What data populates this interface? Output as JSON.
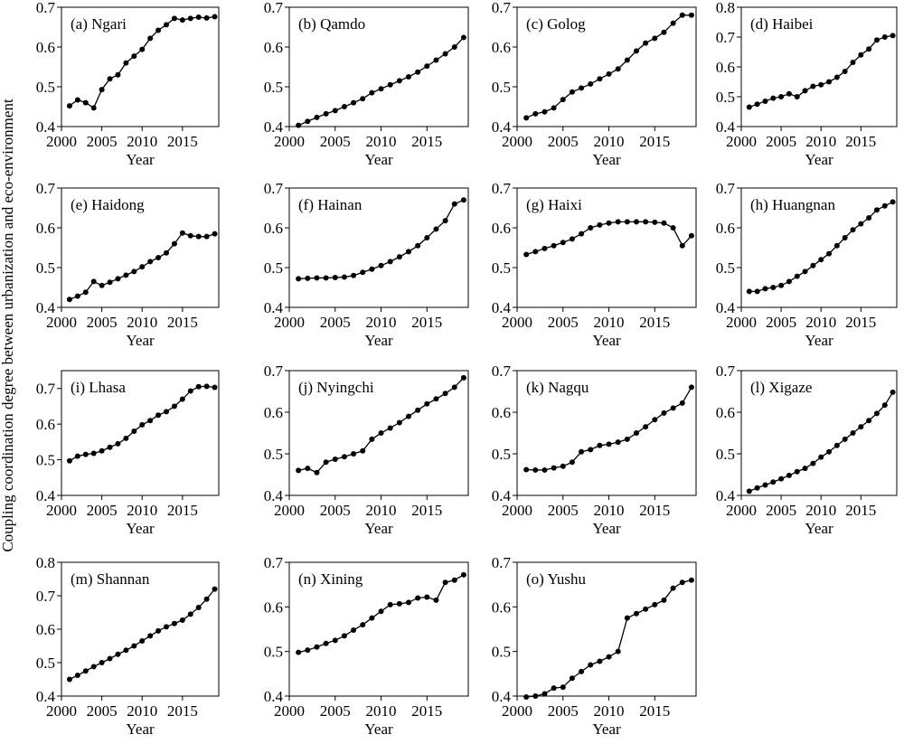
{
  "ylabel": "Coupling coordination degree between urbanization and eco-environment",
  "chart_data": [
    {
      "type": "line",
      "title": "(a) Ngari",
      "xlabel": "Year",
      "x": [
        2001,
        2002,
        2003,
        2004,
        2005,
        2006,
        2007,
        2008,
        2009,
        2010,
        2011,
        2012,
        2013,
        2014,
        2015,
        2016,
        2017,
        2018,
        2019
      ],
      "values": [
        0.452,
        0.467,
        0.46,
        0.447,
        0.493,
        0.52,
        0.53,
        0.56,
        0.577,
        0.594,
        0.622,
        0.642,
        0.656,
        0.672,
        0.668,
        0.672,
        0.675,
        0.673,
        0.676
      ],
      "xlim": [
        2000,
        2019.5
      ],
      "ylim": [
        0.4,
        0.7
      ],
      "xticks": [
        2000,
        2005,
        2010,
        2015
      ],
      "yticks": [
        0.4,
        0.5,
        0.6,
        0.7
      ],
      "color": "#000000"
    },
    {
      "type": "line",
      "title": "(b) Qamdo",
      "xlabel": "Year",
      "x": [
        2001,
        2002,
        2003,
        2004,
        2005,
        2006,
        2007,
        2008,
        2009,
        2010,
        2011,
        2012,
        2013,
        2014,
        2015,
        2016,
        2017,
        2018,
        2019
      ],
      "values": [
        0.403,
        0.413,
        0.423,
        0.432,
        0.44,
        0.45,
        0.46,
        0.47,
        0.485,
        0.495,
        0.505,
        0.515,
        0.525,
        0.537,
        0.552,
        0.567,
        0.583,
        0.6,
        0.624
      ],
      "xlim": [
        2000,
        2019.5
      ],
      "ylim": [
        0.4,
        0.7
      ],
      "xticks": [
        2000,
        2005,
        2010,
        2015
      ],
      "yticks": [
        0.4,
        0.5,
        0.6,
        0.7
      ],
      "color": "#000000"
    },
    {
      "type": "line",
      "title": "(c) Golog",
      "xlabel": "Year",
      "x": [
        2001,
        2002,
        2003,
        2004,
        2005,
        2006,
        2007,
        2008,
        2009,
        2010,
        2011,
        2012,
        2013,
        2014,
        2015,
        2016,
        2017,
        2018,
        2019
      ],
      "values": [
        0.422,
        0.432,
        0.437,
        0.447,
        0.468,
        0.487,
        0.497,
        0.507,
        0.52,
        0.532,
        0.545,
        0.567,
        0.59,
        0.61,
        0.622,
        0.637,
        0.66,
        0.68,
        0.68
      ],
      "xlim": [
        2000,
        2019.5
      ],
      "ylim": [
        0.4,
        0.7
      ],
      "xticks": [
        2000,
        2005,
        2010,
        2015
      ],
      "yticks": [
        0.4,
        0.5,
        0.6,
        0.7
      ],
      "color": "#000000"
    },
    {
      "type": "line",
      "title": "(d) Haibei",
      "xlabel": "Year",
      "x": [
        2001,
        2002,
        2003,
        2004,
        2005,
        2006,
        2007,
        2008,
        2009,
        2010,
        2011,
        2012,
        2013,
        2014,
        2015,
        2016,
        2017,
        2018,
        2019
      ],
      "values": [
        0.465,
        0.475,
        0.485,
        0.495,
        0.5,
        0.51,
        0.5,
        0.52,
        0.535,
        0.54,
        0.55,
        0.565,
        0.585,
        0.615,
        0.64,
        0.66,
        0.69,
        0.7,
        0.705
      ],
      "xlim": [
        2000,
        2019.5
      ],
      "ylim": [
        0.4,
        0.8
      ],
      "xticks": [
        2000,
        2005,
        2010,
        2015
      ],
      "yticks": [
        0.4,
        0.5,
        0.6,
        0.7,
        0.8
      ],
      "color": "#000000"
    },
    {
      "type": "line",
      "title": "(e) Haidong",
      "xlabel": "Year",
      "x": [
        2001,
        2002,
        2003,
        2004,
        2005,
        2006,
        2007,
        2008,
        2009,
        2010,
        2011,
        2012,
        2013,
        2014,
        2015,
        2016,
        2017,
        2018,
        2019
      ],
      "values": [
        0.42,
        0.428,
        0.438,
        0.465,
        0.455,
        0.463,
        0.472,
        0.481,
        0.49,
        0.502,
        0.515,
        0.525,
        0.537,
        0.56,
        0.587,
        0.58,
        0.578,
        0.578,
        0.585
      ],
      "xlim": [
        2000,
        2019.5
      ],
      "ylim": [
        0.4,
        0.7
      ],
      "xticks": [
        2000,
        2005,
        2010,
        2015
      ],
      "yticks": [
        0.4,
        0.5,
        0.6,
        0.7
      ],
      "color": "#000000"
    },
    {
      "type": "line",
      "title": "(f) Hainan",
      "xlabel": "Year",
      "x": [
        2001,
        2002,
        2003,
        2004,
        2005,
        2006,
        2007,
        2008,
        2009,
        2010,
        2011,
        2012,
        2013,
        2014,
        2015,
        2016,
        2017,
        2018,
        2019
      ],
      "values": [
        0.472,
        0.473,
        0.474,
        0.474,
        0.475,
        0.476,
        0.48,
        0.488,
        0.496,
        0.505,
        0.515,
        0.527,
        0.54,
        0.555,
        0.575,
        0.597,
        0.618,
        0.66,
        0.67
      ],
      "xlim": [
        2000,
        2019.5
      ],
      "ylim": [
        0.4,
        0.7
      ],
      "xticks": [
        2000,
        2005,
        2010,
        2015
      ],
      "yticks": [
        0.4,
        0.5,
        0.6,
        0.7
      ],
      "color": "#000000"
    },
    {
      "type": "line",
      "title": "(g) Haixi",
      "xlabel": "Year",
      "x": [
        2001,
        2002,
        2003,
        2004,
        2005,
        2006,
        2007,
        2008,
        2009,
        2010,
        2011,
        2012,
        2013,
        2014,
        2015,
        2016,
        2017,
        2018,
        2019
      ],
      "values": [
        0.533,
        0.54,
        0.548,
        0.555,
        0.563,
        0.572,
        0.585,
        0.6,
        0.607,
        0.612,
        0.615,
        0.615,
        0.615,
        0.615,
        0.614,
        0.612,
        0.6,
        0.555,
        0.58
      ],
      "xlim": [
        2000,
        2019.5
      ],
      "ylim": [
        0.4,
        0.7
      ],
      "xticks": [
        2000,
        2005,
        2010,
        2015
      ],
      "yticks": [
        0.4,
        0.5,
        0.6,
        0.7
      ],
      "color": "#000000"
    },
    {
      "type": "line",
      "title": "(h) Huangnan",
      "xlabel": "Year",
      "x": [
        2001,
        2002,
        2003,
        2004,
        2005,
        2006,
        2007,
        2008,
        2009,
        2010,
        2011,
        2012,
        2013,
        2014,
        2015,
        2016,
        2017,
        2018,
        2019
      ],
      "values": [
        0.44,
        0.44,
        0.447,
        0.45,
        0.455,
        0.465,
        0.478,
        0.49,
        0.505,
        0.52,
        0.535,
        0.555,
        0.575,
        0.595,
        0.61,
        0.625,
        0.645,
        0.655,
        0.665
      ],
      "xlim": [
        2000,
        2019.5
      ],
      "ylim": [
        0.4,
        0.7
      ],
      "xticks": [
        2000,
        2005,
        2010,
        2015
      ],
      "yticks": [
        0.4,
        0.5,
        0.6,
        0.7
      ],
      "color": "#000000"
    },
    {
      "type": "line",
      "title": "(i) Lhasa",
      "xlabel": "Year",
      "x": [
        2001,
        2002,
        2003,
        2004,
        2005,
        2006,
        2007,
        2008,
        2009,
        2010,
        2011,
        2012,
        2013,
        2014,
        2015,
        2016,
        2017,
        2018,
        2019
      ],
      "values": [
        0.497,
        0.51,
        0.515,
        0.518,
        0.525,
        0.535,
        0.545,
        0.56,
        0.58,
        0.598,
        0.61,
        0.625,
        0.635,
        0.65,
        0.67,
        0.693,
        0.705,
        0.706,
        0.703
      ],
      "xlim": [
        2000,
        2019.5
      ],
      "ylim": [
        0.4,
        0.75
      ],
      "xticks": [
        2000,
        2005,
        2010,
        2015
      ],
      "yticks": [
        0.4,
        0.5,
        0.6,
        0.7
      ],
      "color": "#000000"
    },
    {
      "type": "line",
      "title": "(j) Nyingchi",
      "xlabel": "Year",
      "x": [
        2001,
        2002,
        2003,
        2004,
        2005,
        2006,
        2007,
        2008,
        2009,
        2010,
        2011,
        2012,
        2013,
        2014,
        2015,
        2016,
        2017,
        2018,
        2019
      ],
      "values": [
        0.46,
        0.465,
        0.455,
        0.48,
        0.487,
        0.493,
        0.5,
        0.507,
        0.535,
        0.55,
        0.562,
        0.575,
        0.59,
        0.605,
        0.62,
        0.632,
        0.645,
        0.66,
        0.683
      ],
      "xlim": [
        2000,
        2019.5
      ],
      "ylim": [
        0.4,
        0.7
      ],
      "xticks": [
        2000,
        2005,
        2010,
        2015
      ],
      "yticks": [
        0.4,
        0.5,
        0.6,
        0.7
      ],
      "color": "#000000"
    },
    {
      "type": "line",
      "title": "(k) Nagqu",
      "xlabel": "Year",
      "x": [
        2001,
        2002,
        2003,
        2004,
        2005,
        2006,
        2007,
        2008,
        2009,
        2010,
        2011,
        2012,
        2013,
        2014,
        2015,
        2016,
        2017,
        2018,
        2019
      ],
      "values": [
        0.462,
        0.461,
        0.461,
        0.466,
        0.47,
        0.48,
        0.505,
        0.51,
        0.52,
        0.523,
        0.528,
        0.535,
        0.55,
        0.565,
        0.582,
        0.598,
        0.61,
        0.622,
        0.66
      ],
      "xlim": [
        2000,
        2019.5
      ],
      "ylim": [
        0.4,
        0.7
      ],
      "xticks": [
        2000,
        2005,
        2010,
        2015
      ],
      "yticks": [
        0.4,
        0.5,
        0.6,
        0.7
      ],
      "color": "#000000"
    },
    {
      "type": "line",
      "title": "(l) Xigaze",
      "xlabel": "Year",
      "x": [
        2001,
        2002,
        2003,
        2004,
        2005,
        2006,
        2007,
        2008,
        2009,
        2010,
        2011,
        2012,
        2013,
        2014,
        2015,
        2016,
        2017,
        2018,
        2019
      ],
      "values": [
        0.41,
        0.418,
        0.425,
        0.432,
        0.44,
        0.448,
        0.457,
        0.465,
        0.477,
        0.492,
        0.505,
        0.52,
        0.535,
        0.55,
        0.565,
        0.58,
        0.597,
        0.617,
        0.648
      ],
      "xlim": [
        2000,
        2019.5
      ],
      "ylim": [
        0.4,
        0.7
      ],
      "xticks": [
        2000,
        2005,
        2010,
        2015
      ],
      "yticks": [
        0.4,
        0.5,
        0.6,
        0.7
      ],
      "color": "#000000"
    },
    {
      "type": "line",
      "title": "(m) Shannan",
      "xlabel": "Year",
      "x": [
        2001,
        2002,
        2003,
        2004,
        2005,
        2006,
        2007,
        2008,
        2009,
        2010,
        2011,
        2012,
        2013,
        2014,
        2015,
        2016,
        2017,
        2018,
        2019
      ],
      "values": [
        0.45,
        0.462,
        0.475,
        0.488,
        0.5,
        0.512,
        0.525,
        0.537,
        0.55,
        0.565,
        0.58,
        0.595,
        0.607,
        0.617,
        0.627,
        0.645,
        0.665,
        0.69,
        0.72
      ],
      "xlim": [
        2000,
        2019.5
      ],
      "ylim": [
        0.4,
        0.8
      ],
      "xticks": [
        2000,
        2005,
        2010,
        2015
      ],
      "yticks": [
        0.4,
        0.5,
        0.6,
        0.7,
        0.8
      ],
      "color": "#000000"
    },
    {
      "type": "line",
      "title": "(n) Xining",
      "xlabel": "Year",
      "x": [
        2001,
        2002,
        2003,
        2004,
        2005,
        2006,
        2007,
        2008,
        2009,
        2010,
        2011,
        2012,
        2013,
        2014,
        2015,
        2016,
        2017,
        2018,
        2019
      ],
      "values": [
        0.498,
        0.503,
        0.51,
        0.518,
        0.525,
        0.535,
        0.548,
        0.56,
        0.575,
        0.59,
        0.605,
        0.607,
        0.61,
        0.62,
        0.622,
        0.615,
        0.655,
        0.66,
        0.672
      ],
      "xlim": [
        2000,
        2019.5
      ],
      "ylim": [
        0.4,
        0.7
      ],
      "xticks": [
        2000,
        2005,
        2010,
        2015
      ],
      "yticks": [
        0.4,
        0.5,
        0.6,
        0.7
      ],
      "color": "#000000"
    },
    {
      "type": "line",
      "title": "(o) Yushu",
      "xlabel": "Year",
      "x": [
        2001,
        2002,
        2003,
        2004,
        2005,
        2006,
        2007,
        2008,
        2009,
        2010,
        2011,
        2012,
        2013,
        2014,
        2015,
        2016,
        2017,
        2018,
        2019
      ],
      "values": [
        0.398,
        0.4,
        0.405,
        0.418,
        0.42,
        0.44,
        0.455,
        0.47,
        0.478,
        0.488,
        0.5,
        0.575,
        0.585,
        0.595,
        0.605,
        0.615,
        0.642,
        0.655,
        0.66
      ],
      "xlim": [
        2000,
        2019.5
      ],
      "ylim": [
        0.4,
        0.7
      ],
      "xticks": [
        2000,
        2005,
        2010,
        2015
      ],
      "yticks": [
        0.4,
        0.5,
        0.6,
        0.7
      ],
      "color": "#000000"
    }
  ]
}
